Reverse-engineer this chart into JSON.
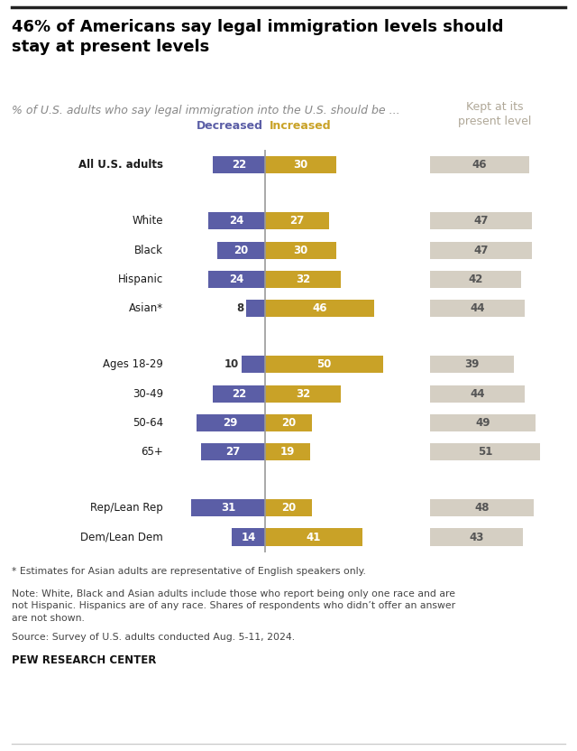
{
  "title": "46% of Americans say legal immigration levels should\nstay at present levels",
  "subtitle": "% of U.S. adults who say legal immigration into the U.S. should be ...",
  "col_header_decreased": "Decreased",
  "col_header_increased": "Increased",
  "col_header_kept": "Kept at its\npresent level",
  "categories": [
    "All U.S. adults",
    "White",
    "Black",
    "Hispanic",
    "Asian*",
    "Ages 18-29",
    "30-49",
    "50-64",
    "65+",
    "Rep/Lean Rep",
    "Dem/Lean Dem"
  ],
  "group_starts": [
    0,
    1,
    5,
    9
  ],
  "decreased": [
    22,
    24,
    20,
    24,
    8,
    10,
    22,
    29,
    27,
    31,
    14
  ],
  "increased": [
    30,
    27,
    30,
    32,
    46,
    50,
    32,
    20,
    19,
    20,
    41
  ],
  "kept": [
    46,
    47,
    47,
    42,
    44,
    39,
    44,
    49,
    51,
    48,
    43
  ],
  "color_decreased": "#5b5ea6",
  "color_increased": "#c9a227",
  "color_kept": "#d5cfc3",
  "color_title": "#000000",
  "color_subtitle": "#888888",
  "color_header_kept": "#b0a898",
  "footnote1": "* Estimates for Asian adults are representative of English speakers only.",
  "footnote2": "Note: White, Black and Asian adults include those who report being only one race and are\nnot Hispanic. Hispanics are of any race. Shares of respondents who didn’t offer an answer\nare not shown.",
  "footnote3": "Source: Survey of U.S. adults conducted Aug. 5-11, 2024.",
  "source": "PEW RESEARCH CENTER",
  "xlim_left": 40,
  "xlim_right": 55,
  "kept_xlim": 60
}
